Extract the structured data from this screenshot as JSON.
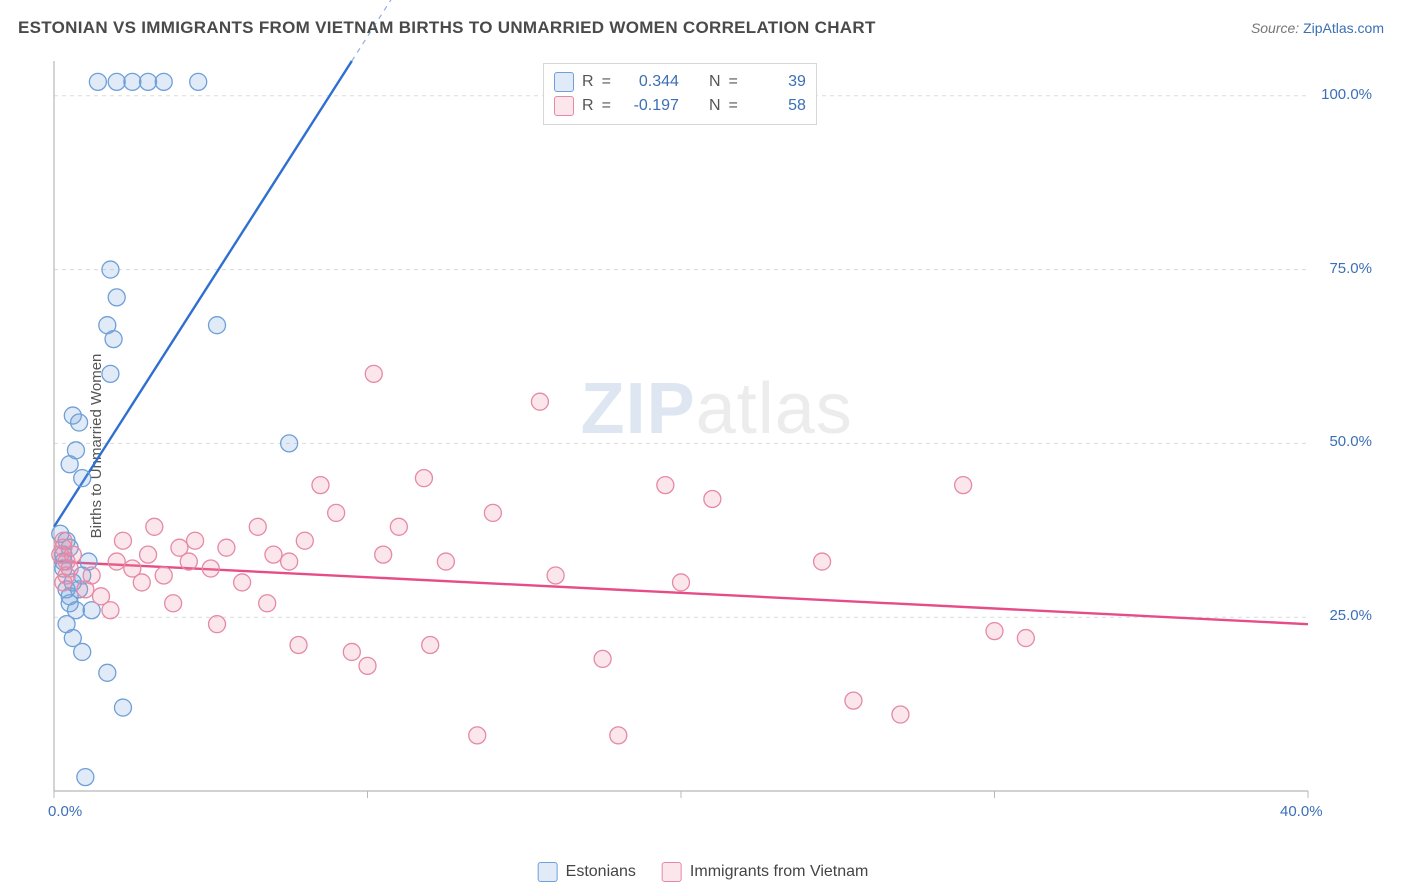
{
  "title": "ESTONIAN VS IMMIGRANTS FROM VIETNAM BIRTHS TO UNMARRIED WOMEN CORRELATION CHART",
  "source_label": "Source:",
  "source_value": "ZipAtlas.com",
  "ylabel": "Births to Unmarried Women",
  "watermark_a": "ZIP",
  "watermark_b": "atlas",
  "chart": {
    "type": "scatter",
    "xlim": [
      0,
      40
    ],
    "ylim": [
      0,
      105
    ],
    "xticks": [
      0,
      10,
      20,
      30,
      40
    ],
    "xtick_labels": [
      "0.0%",
      "",
      "",
      "",
      "40.0%"
    ],
    "yticks": [
      25,
      50,
      75,
      100
    ],
    "ytick_labels": [
      "25.0%",
      "50.0%",
      "75.0%",
      "100.0%"
    ],
    "grid_color": "#dcdcdc",
    "grid_dash": "4,4",
    "axis_color": "#b8b8b8",
    "background": "#ffffff",
    "marker_radius": 8.5,
    "marker_stroke_width": 1.3,
    "series": [
      {
        "name": "Estonians",
        "fill": "rgba(120,165,220,0.22)",
        "stroke": "#6f9fd8",
        "line_color": "#2e6fd0",
        "line_width": 2.4,
        "r_value": "0.344",
        "n_value": "39",
        "regression": {
          "x1": 0,
          "y1": 38,
          "x2": 9.5,
          "y2": 105,
          "extend_dash_to_x": 11.5
        },
        "points": [
          [
            0.3,
            32
          ],
          [
            0.4,
            29
          ],
          [
            0.5,
            28
          ],
          [
            0.6,
            30
          ],
          [
            0.5,
            27
          ],
          [
            0.7,
            26
          ],
          [
            0.8,
            29
          ],
          [
            0.9,
            31
          ],
          [
            0.3,
            34
          ],
          [
            0.4,
            36
          ],
          [
            0.5,
            35
          ],
          [
            0.2,
            37
          ],
          [
            0.3,
            33
          ],
          [
            0.5,
            47
          ],
          [
            0.6,
            54
          ],
          [
            0.7,
            49
          ],
          [
            0.8,
            53
          ],
          [
            0.9,
            45
          ],
          [
            1.8,
            60
          ],
          [
            1.9,
            65
          ],
          [
            2.0,
            71
          ],
          [
            1.8,
            75
          ],
          [
            1.7,
            67
          ],
          [
            2.2,
            12
          ],
          [
            0.9,
            20
          ],
          [
            1.7,
            17
          ],
          [
            5.2,
            67
          ],
          [
            7.5,
            50
          ],
          [
            1.4,
            102
          ],
          [
            2.0,
            102
          ],
          [
            2.5,
            102
          ],
          [
            3.0,
            102
          ],
          [
            3.5,
            102
          ],
          [
            4.6,
            102
          ],
          [
            0.4,
            24
          ],
          [
            0.6,
            22
          ],
          [
            1.0,
            2
          ],
          [
            1.2,
            26
          ],
          [
            1.1,
            33
          ]
        ]
      },
      {
        "name": "Immigrants from Vietnam",
        "fill": "rgba(235,140,170,0.22)",
        "stroke": "#e589a6",
        "line_color": "#e64d86",
        "line_width": 2.4,
        "r_value": "-0.197",
        "n_value": "58",
        "regression": {
          "x1": 0,
          "y1": 33,
          "x2": 40,
          "y2": 24
        },
        "points": [
          [
            0.2,
            34
          ],
          [
            0.3,
            35
          ],
          [
            0.4,
            33
          ],
          [
            0.3,
            36
          ],
          [
            0.5,
            32
          ],
          [
            0.6,
            34
          ],
          [
            0.4,
            31
          ],
          [
            0.3,
            30
          ],
          [
            1.0,
            29
          ],
          [
            1.2,
            31
          ],
          [
            1.5,
            28
          ],
          [
            1.8,
            26
          ],
          [
            2.0,
            33
          ],
          [
            2.2,
            36
          ],
          [
            2.5,
            32
          ],
          [
            2.8,
            30
          ],
          [
            3.0,
            34
          ],
          [
            3.2,
            38
          ],
          [
            3.5,
            31
          ],
          [
            3.8,
            27
          ],
          [
            4.0,
            35
          ],
          [
            4.3,
            33
          ],
          [
            4.5,
            36
          ],
          [
            5.0,
            32
          ],
          [
            5.5,
            35
          ],
          [
            6.0,
            30
          ],
          [
            6.5,
            38
          ],
          [
            7.0,
            34
          ],
          [
            7.5,
            33
          ],
          [
            8.0,
            36
          ],
          [
            8.5,
            44
          ],
          [
            9.0,
            40
          ],
          [
            9.5,
            20
          ],
          [
            10.0,
            18
          ],
          [
            10.5,
            34
          ],
          [
            11.0,
            38
          ],
          [
            12.0,
            21
          ],
          [
            12.5,
            33
          ],
          [
            13.5,
            8
          ],
          [
            14.0,
            40
          ],
          [
            15.5,
            56
          ],
          [
            16.0,
            31
          ],
          [
            17.5,
            19
          ],
          [
            18.0,
            8
          ],
          [
            19.5,
            44
          ],
          [
            20.0,
            30
          ],
          [
            21.0,
            42
          ],
          [
            24.5,
            33
          ],
          [
            25.5,
            13
          ],
          [
            27.0,
            11
          ],
          [
            29.0,
            44
          ],
          [
            30.0,
            23
          ],
          [
            31.0,
            22
          ],
          [
            10.2,
            60
          ],
          [
            11.8,
            45
          ],
          [
            6.8,
            27
          ],
          [
            7.8,
            21
          ],
          [
            5.2,
            24
          ]
        ]
      }
    ]
  },
  "legend": {
    "series1": "Estonians",
    "series2": "Immigrants from Vietnam"
  },
  "stats_labels": {
    "r": "R",
    "eq": "=",
    "n": "N"
  }
}
